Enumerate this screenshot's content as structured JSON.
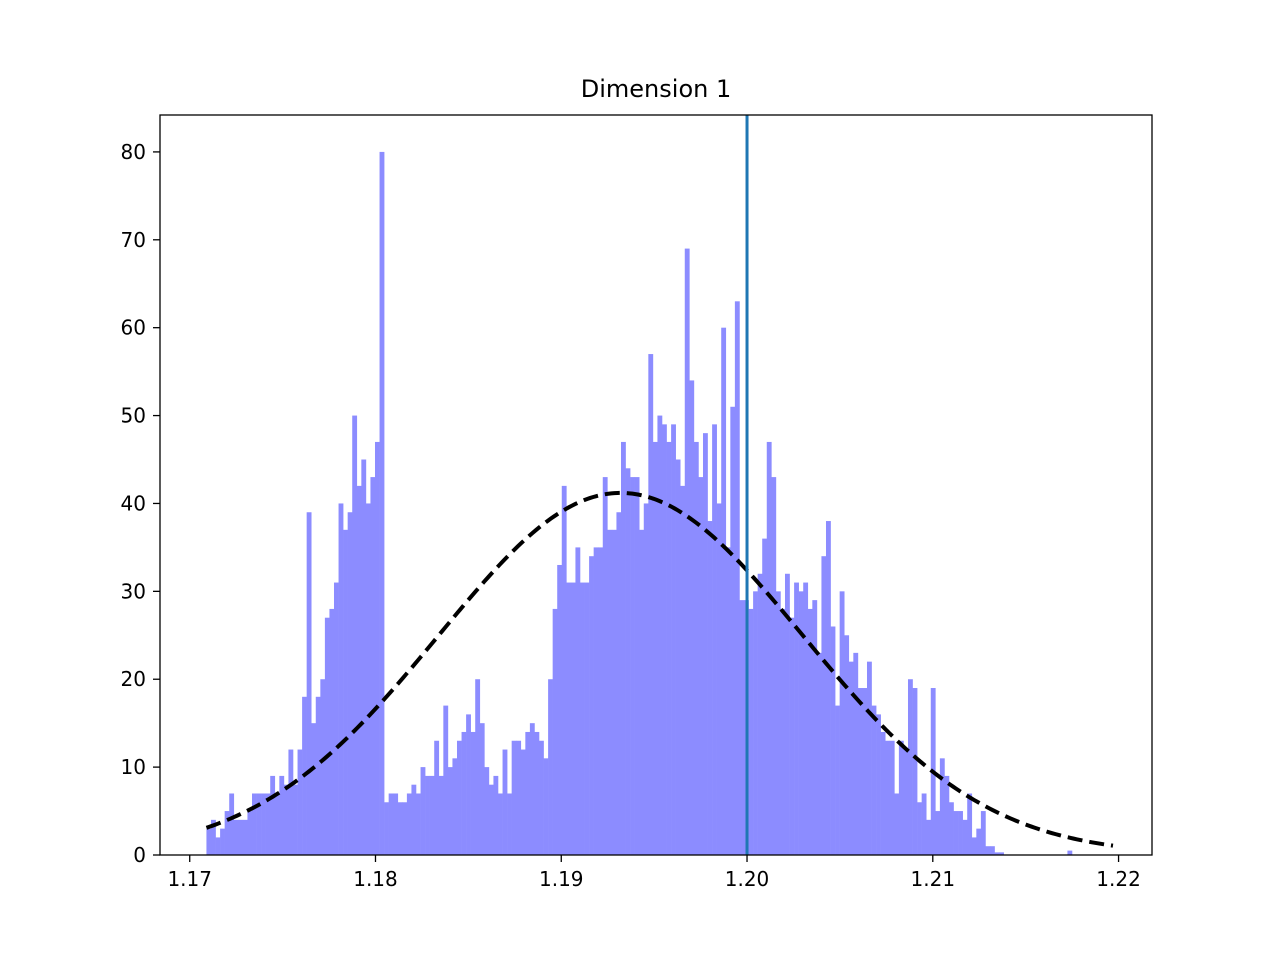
{
  "chart_data": {
    "type": "bar",
    "title": "Dimension 1",
    "xlabel": "",
    "ylabel": "",
    "xlim": [
      1.1684,
      1.2218
    ],
    "ylim": [
      0,
      84.2
    ],
    "xticks": [
      "1.17",
      "1.18",
      "1.19",
      "1.20",
      "1.21",
      "1.22"
    ],
    "xtick_values": [
      1.17,
      1.18,
      1.19,
      1.2,
      1.21,
      1.22
    ],
    "yticks": [
      "0",
      "10",
      "20",
      "30",
      "40",
      "50",
      "60",
      "70",
      "80"
    ],
    "ytick_values": [
      0,
      10,
      20,
      30,
      40,
      50,
      60,
      70,
      80
    ],
    "histogram": {
      "range": [
        1.1709,
        1.2197
      ],
      "color": "#8c8cff",
      "values": [
        3,
        4,
        2,
        3,
        5,
        7,
        4,
        4,
        4,
        5,
        7,
        7,
        7,
        7,
        9,
        7,
        9,
        8,
        12,
        8,
        12,
        18,
        39,
        15,
        18,
        20,
        27,
        28,
        31,
        40,
        37,
        39,
        50,
        42,
        45,
        40,
        43,
        47,
        80,
        6,
        7,
        7,
        6,
        6,
        7,
        8,
        7,
        10,
        9,
        9,
        13,
        9,
        17,
        10,
        11,
        13,
        14,
        16,
        14,
        20,
        15,
        10,
        8,
        9,
        7,
        12,
        7,
        13,
        13,
        12,
        14,
        15,
        14,
        13,
        11,
        20,
        28,
        33,
        42,
        31,
        31,
        35,
        31,
        31,
        34,
        35,
        35,
        43,
        37,
        37,
        39,
        47,
        44,
        43,
        43,
        37,
        40,
        57,
        47,
        50,
        49,
        47,
        49,
        45,
        42,
        69,
        54,
        47,
        43,
        48,
        38,
        49,
        40,
        60,
        35,
        51,
        63,
        29,
        29,
        28,
        30,
        32,
        36,
        47,
        43,
        30,
        28,
        32,
        27,
        31,
        30,
        31,
        28,
        29,
        23,
        34,
        38,
        26,
        17,
        30,
        25,
        22,
        23,
        19,
        19,
        22,
        17,
        16,
        14,
        13,
        13,
        7,
        13,
        12,
        20,
        19,
        6,
        7,
        4,
        19,
        5,
        11,
        9,
        6,
        5,
        5,
        4,
        7,
        2,
        3,
        5,
        1,
        1,
        0.3,
        0.3,
        0,
        0,
        0,
        0,
        0,
        0,
        0,
        0,
        0,
        0,
        0,
        0,
        0,
        0,
        0.5,
        0,
        0,
        0,
        0,
        0,
        0,
        0,
        0,
        0
      ]
    },
    "fit_curve": {
      "type": "normal",
      "mu": 1.1932,
      "sigma": 0.0098,
      "peak": 41.2,
      "x_range": [
        1.1709,
        1.2197
      ],
      "color": "#000000",
      "style": "dashed"
    },
    "vertical_line": {
      "x": 1.2,
      "color": "#1f77b4"
    },
    "grid": false,
    "legend": "none"
  }
}
